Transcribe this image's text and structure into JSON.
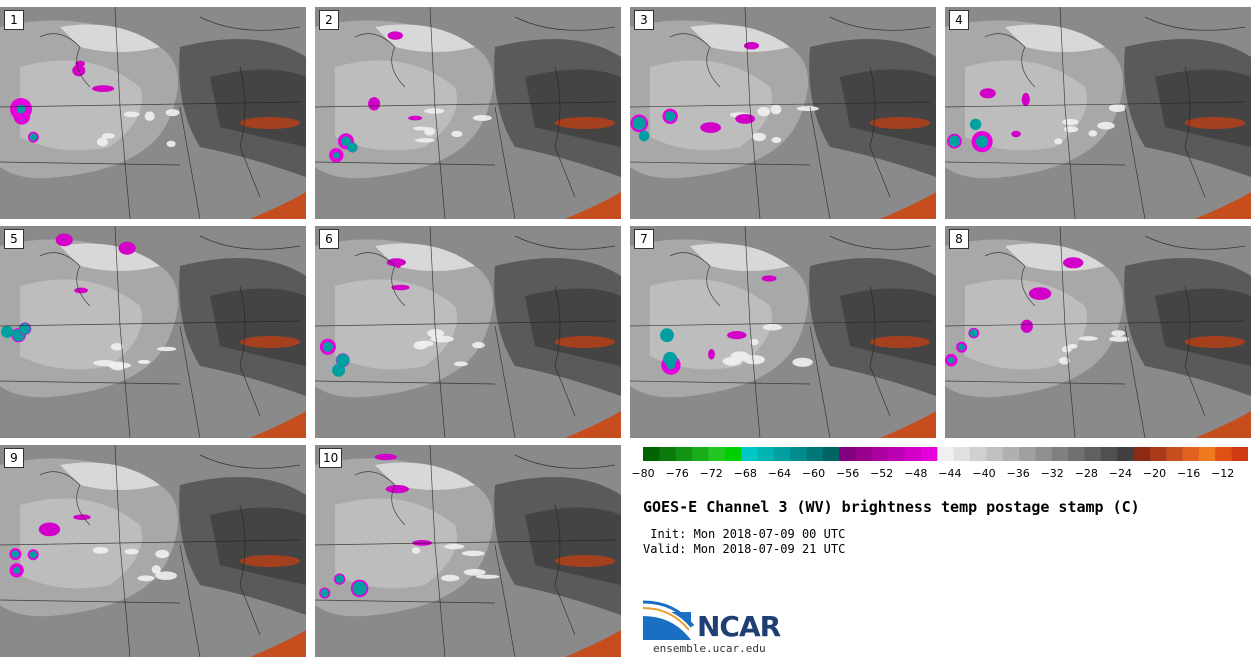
{
  "panels": [
    {
      "label": "1"
    },
    {
      "label": "2"
    },
    {
      "label": "3"
    },
    {
      "label": "4"
    },
    {
      "label": "5"
    },
    {
      "label": "6"
    },
    {
      "label": "7"
    },
    {
      "label": "8"
    },
    {
      "label": "9"
    },
    {
      "label": "10"
    }
  ],
  "colorbar": {
    "ticks": [
      "−80",
      "−76",
      "−72",
      "−68",
      "−64",
      "−60",
      "−56",
      "−52",
      "−48",
      "−44",
      "−40",
      "−36",
      "−32",
      "−28",
      "−24",
      "−20",
      "−16",
      "−12"
    ],
    "colors": [
      "#006400",
      "#0b7a0b",
      "#139313",
      "#1aad1a",
      "#22c722",
      "#00d000",
      "#00c8c8",
      "#00b4b4",
      "#00a0a0",
      "#008c8c",
      "#007878",
      "#006464",
      "#800080",
      "#96008c",
      "#aa00a0",
      "#be00b4",
      "#d200c8",
      "#e600dc",
      "#f0f0f0",
      "#e0e0e0",
      "#d0d0d0",
      "#c0c0c0",
      "#b0b0b0",
      "#a0a0a0",
      "#909090",
      "#808080",
      "#707070",
      "#606060",
      "#505050",
      "#404040",
      "#8b2a15",
      "#a83a1a",
      "#c54d1e",
      "#e06020",
      "#f07a1e",
      "#e05015",
      "#d03a10"
    ]
  },
  "title": "GOES-E Channel 3 (WV) brightness temp postage stamp (C)",
  "init": " Init: Mon 2018-07-09 00 UTC",
  "valid": "Valid: Mon 2018-07-09 21 UTC",
  "logo": {
    "name": "NCAR",
    "url": "ensemble.ucar.edu"
  }
}
